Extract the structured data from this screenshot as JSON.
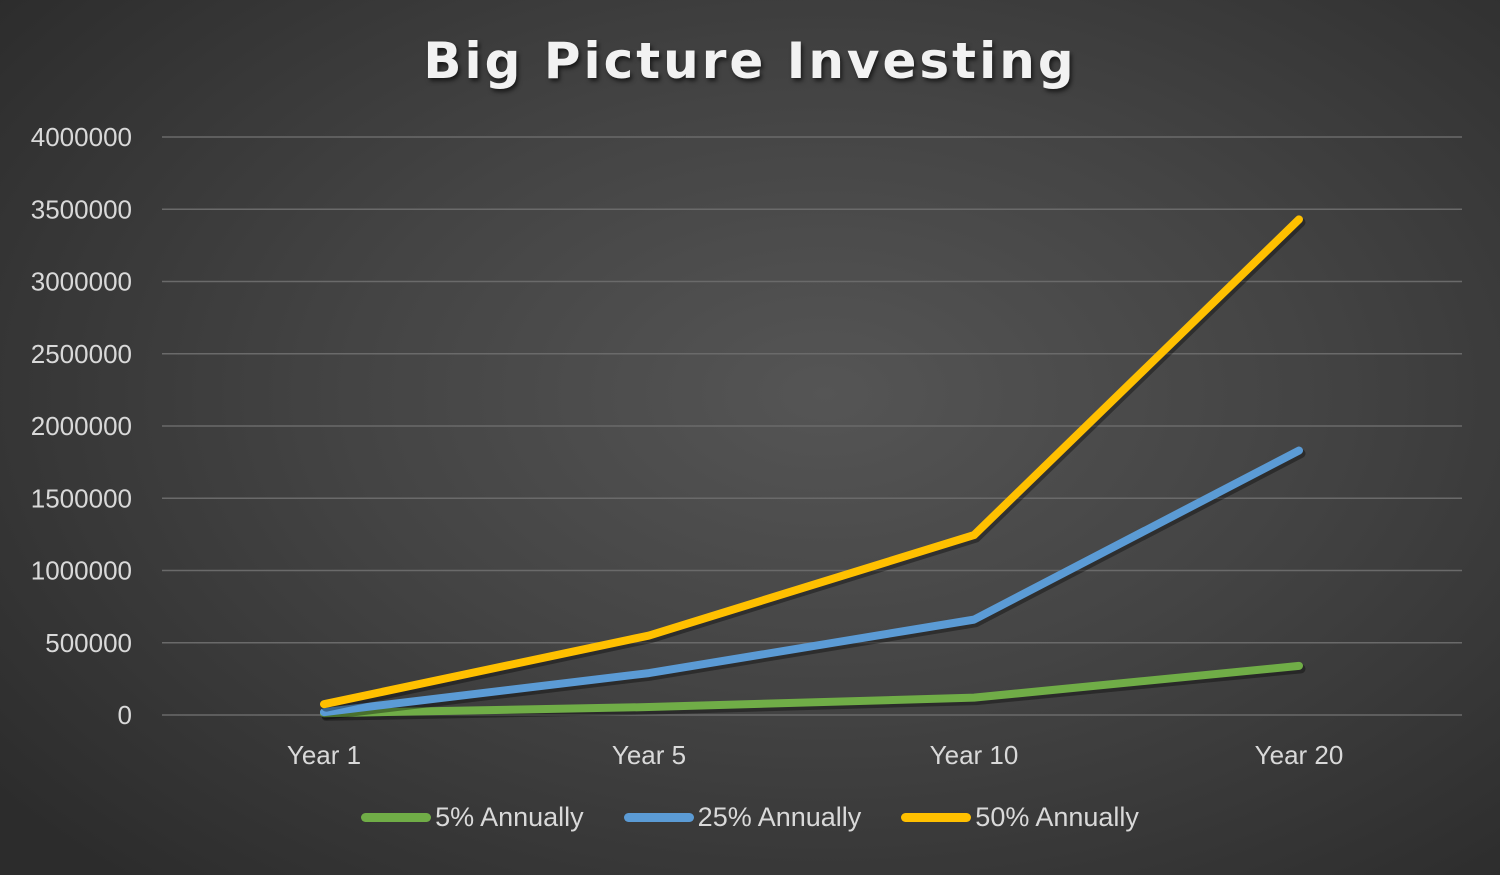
{
  "chart_data": {
    "type": "line",
    "title": "Big Picture Investing",
    "xlabel": "",
    "ylabel": "",
    "categories": [
      "Year 1",
      "Year 5",
      "Year 10",
      "Year 20"
    ],
    "ylim": [
      0,
      4000000
    ],
    "yticks": [
      0,
      500000,
      1000000,
      1500000,
      2000000,
      2500000,
      3000000,
      3500000,
      4000000
    ],
    "ytick_labels": [
      "0",
      "500000",
      "1000000",
      "1500000",
      "2000000",
      "2500000",
      "3000000",
      "3500000",
      "4000000"
    ],
    "grid": true,
    "legend_position": "bottom",
    "series": [
      {
        "name": "5% Annually",
        "color": "#70ad47",
        "values": [
          12000,
          55000,
          120000,
          340000
        ]
      },
      {
        "name": "25% Annually",
        "color": "#5b9bd5",
        "values": [
          20000,
          290000,
          660000,
          1830000
        ]
      },
      {
        "name": "50% Annually",
        "color": "#ffc000",
        "values": [
          75000,
          550000,
          1245000,
          3430000
        ]
      }
    ]
  }
}
